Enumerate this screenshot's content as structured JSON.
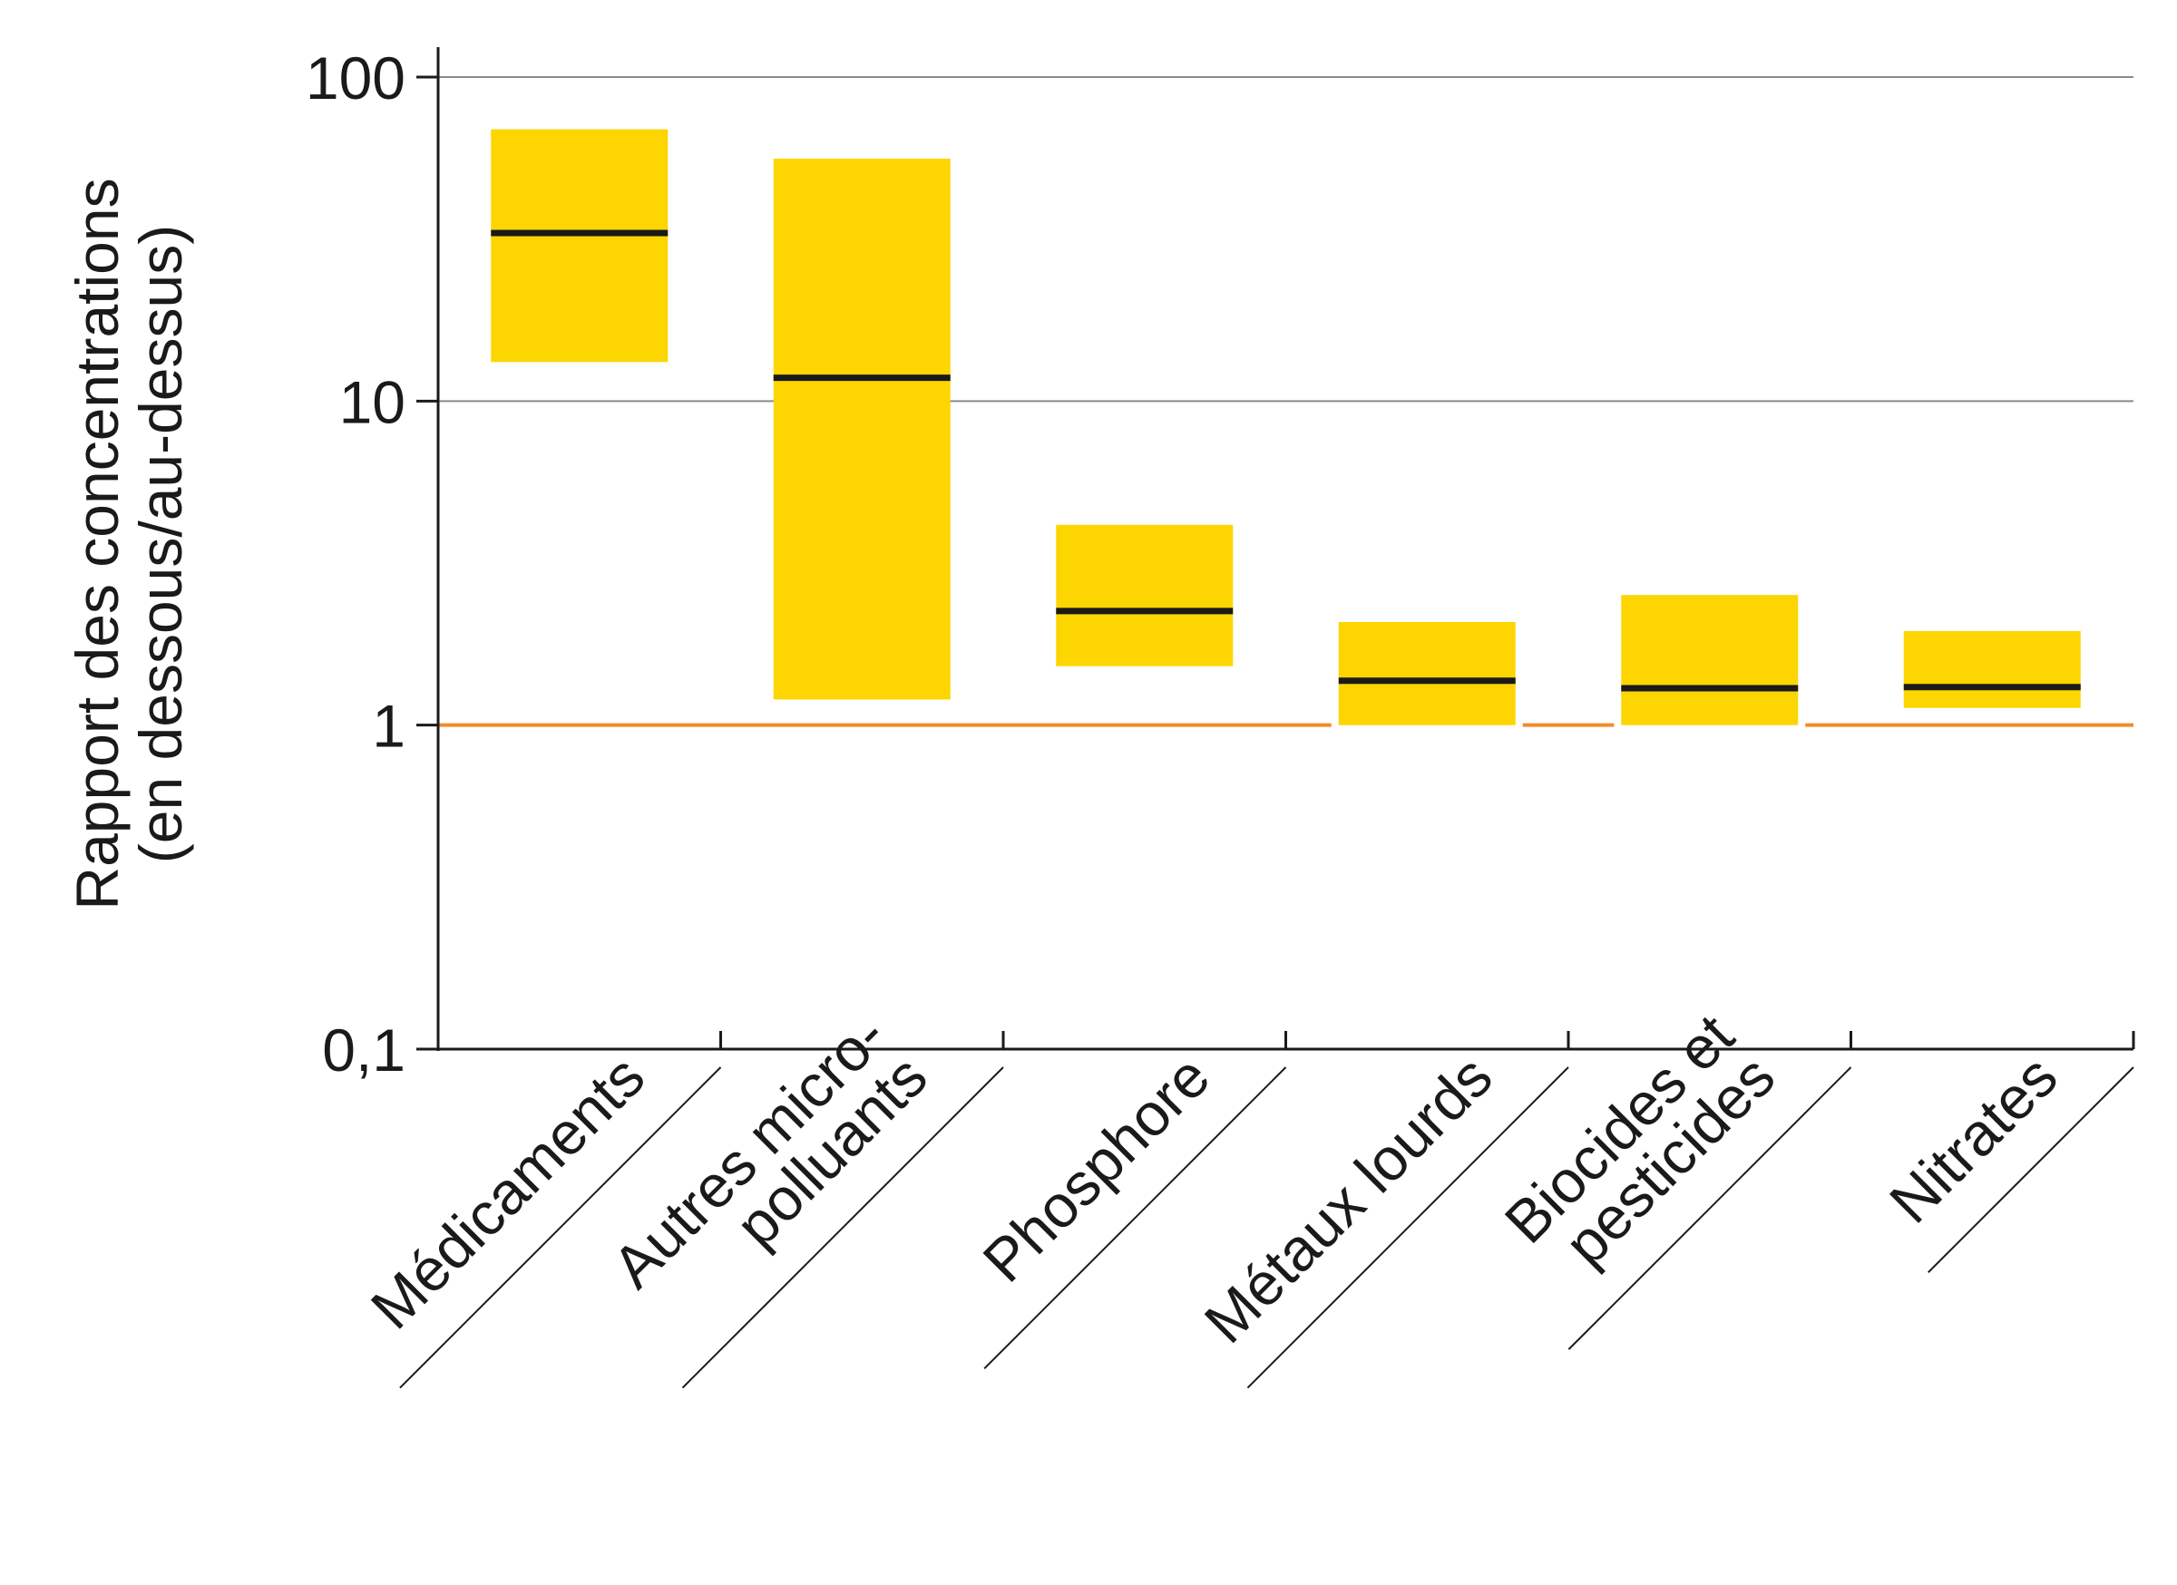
{
  "chart_data": {
    "type": "bar",
    "scale": "log",
    "ylim": [
      0.1,
      100
    ],
    "yticks": [
      {
        "value": 0.1,
        "label": "0,1"
      },
      {
        "value": 1,
        "label": "1"
      },
      {
        "value": 10,
        "label": "10"
      },
      {
        "value": 100,
        "label": "100"
      }
    ],
    "ylabel_lines": [
      "Rapport des concentrations",
      "(en dessous/au-dessus)"
    ],
    "reference_line": {
      "value": 1
    },
    "categories": [
      {
        "lines": [
          "Médicaments"
        ],
        "low": 13.2,
        "median": 33,
        "high": 69
      },
      {
        "lines": [
          "Autres micro-",
          "polluants"
        ],
        "low": 1.2,
        "median": 11.8,
        "high": 56
      },
      {
        "lines": [
          "Phosphore"
        ],
        "low": 1.52,
        "median": 2.25,
        "high": 4.15
      },
      {
        "lines": [
          "Métaux lourds"
        ],
        "low": 1.0,
        "median": 1.37,
        "high": 2.08
      },
      {
        "lines": [
          "Biocides et",
          "pesticides"
        ],
        "low": 1.0,
        "median": 1.3,
        "high": 2.52
      },
      {
        "lines": [
          "Nitrates"
        ],
        "low": 1.13,
        "median": 1.31,
        "high": 1.95
      }
    ],
    "grid": true,
    "colors": {
      "bar": "#FDD500",
      "median": "#1a1a1a",
      "reference": "#F28C28",
      "grid": "#8a8a8a",
      "axis": "#1a1a1a"
    }
  }
}
